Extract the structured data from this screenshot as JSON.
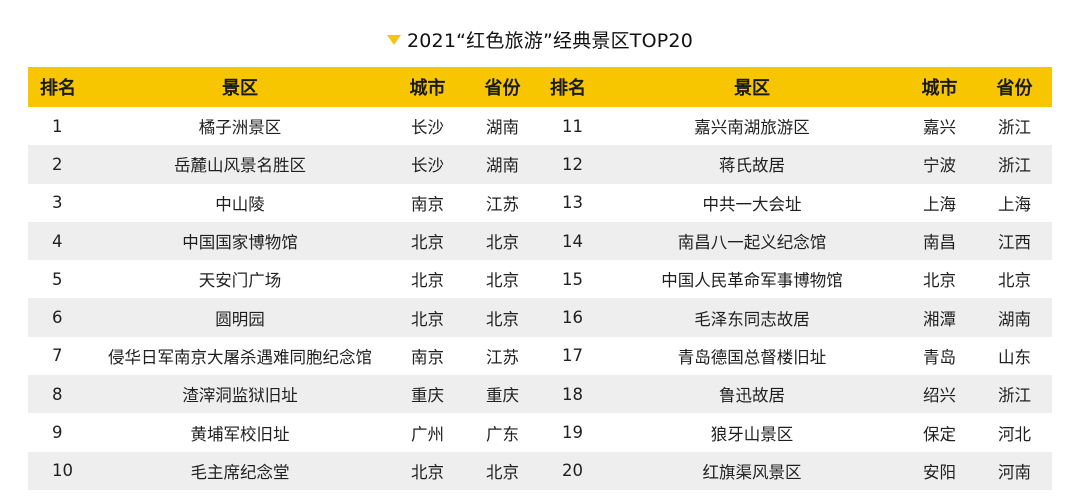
{
  "title": {
    "icon": "triangle-down-icon",
    "icon_color": "#f5c518",
    "text": "2021“红色旅游”经典景区TOP20"
  },
  "colors": {
    "header_bg": "#f7c600",
    "row_alt_bg": "#eeeeee"
  },
  "headers": {
    "rank": "排名",
    "scenic": "景区",
    "city": "城市",
    "province": "省份"
  },
  "rows": [
    {
      "rank": "1",
      "scenic": "橘子洲景区",
      "city": "长沙",
      "province": "湖南"
    },
    {
      "rank": "2",
      "scenic": "岳麓山风景名胜区",
      "city": "长沙",
      "province": "湖南"
    },
    {
      "rank": "3",
      "scenic": "中山陵",
      "city": "南京",
      "province": "江苏"
    },
    {
      "rank": "4",
      "scenic": "中国国家博物馆",
      "city": "北京",
      "province": "北京"
    },
    {
      "rank": "5",
      "scenic": "天安门广场",
      "city": "北京",
      "province": "北京"
    },
    {
      "rank": "6",
      "scenic": "圆明园",
      "city": "北京",
      "province": "北京"
    },
    {
      "rank": "7",
      "scenic": "侵华日军南京大屠杀遇难同胞纪念馆",
      "city": "南京",
      "province": "江苏"
    },
    {
      "rank": "8",
      "scenic": "渣滓洞监狱旧址",
      "city": "重庆",
      "province": "重庆"
    },
    {
      "rank": "9",
      "scenic": "黄埔军校旧址",
      "city": "广州",
      "province": "广东"
    },
    {
      "rank": "10",
      "scenic": "毛主席纪念堂",
      "city": "北京",
      "province": "北京"
    },
    {
      "rank": "11",
      "scenic": "嘉兴南湖旅游区",
      "city": "嘉兴",
      "province": "浙江"
    },
    {
      "rank": "12",
      "scenic": "蒋氏故居",
      "city": "宁波",
      "province": "浙江"
    },
    {
      "rank": "13",
      "scenic": "中共一大会址",
      "city": "上海",
      "province": "上海"
    },
    {
      "rank": "14",
      "scenic": "南昌八一起义纪念馆",
      "city": "南昌",
      "province": "江西"
    },
    {
      "rank": "15",
      "scenic": "中国人民革命军事博物馆",
      "city": "北京",
      "province": "北京"
    },
    {
      "rank": "16",
      "scenic": "毛泽东同志故居",
      "city": "湘潭",
      "province": "湖南"
    },
    {
      "rank": "17",
      "scenic": "青岛德国总督楼旧址",
      "city": "青岛",
      "province": "山东"
    },
    {
      "rank": "18",
      "scenic": "鲁迅故居",
      "city": "绍兴",
      "province": "浙江"
    },
    {
      "rank": "19",
      "scenic": "狼牙山景区",
      "city": "保定",
      "province": "河北"
    },
    {
      "rank": "20",
      "scenic": "红旗渠风景区",
      "city": "安阳",
      "province": "河南"
    }
  ]
}
